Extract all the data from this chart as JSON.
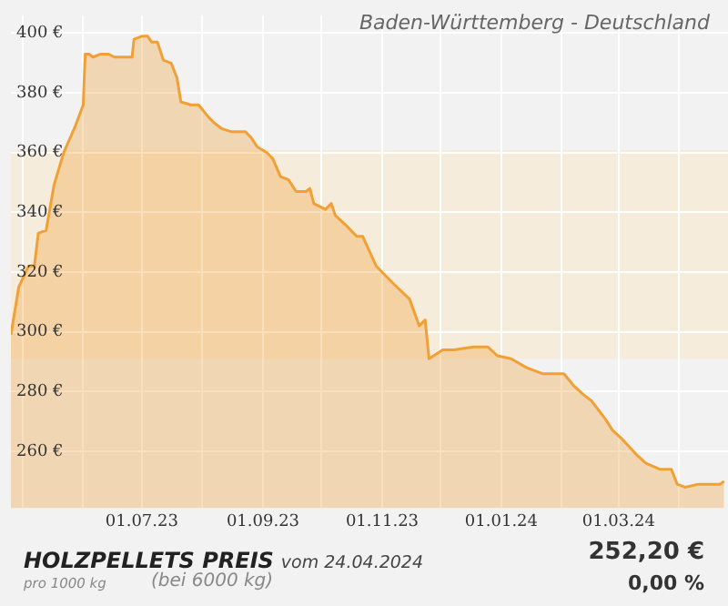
{
  "chart_data": {
    "type": "area",
    "title": "HOLZPELLETS PREIS",
    "subtitle": "vom 24.04.2024",
    "annotations": [
      "Baden-Württemberg - Deutschland",
      "pro 1000 kg",
      "(bei 6000 kg)",
      "252,20 €",
      "0,00 %"
    ],
    "x": [
      "2023-04-25",
      "2023-04-29",
      "2023-05-04",
      "2023-05-07",
      "2023-05-09",
      "2023-05-13",
      "2023-05-17",
      "2023-05-22",
      "2023-05-28",
      "2023-06-01",
      "2023-06-02",
      "2023-06-04",
      "2023-06-06",
      "2023-06-10",
      "2023-06-14",
      "2023-06-17",
      "2023-06-26",
      "2023-06-27",
      "2023-07-01",
      "2023-07-04",
      "2023-07-06",
      "2023-07-09",
      "2023-07-12",
      "2023-07-16",
      "2023-07-19",
      "2023-07-21",
      "2023-07-26",
      "2023-07-30",
      "2023-08-04",
      "2023-08-07",
      "2023-08-11",
      "2023-08-16",
      "2023-08-23",
      "2023-08-26",
      "2023-08-29",
      "2023-09-03",
      "2023-09-06",
      "2023-09-10",
      "2023-09-14",
      "2023-09-18",
      "2023-09-23",
      "2023-09-25",
      "2023-09-27",
      "2023-10-03",
      "2023-10-06",
      "2023-10-08",
      "2023-10-13",
      "2023-10-19",
      "2023-10-22",
      "2023-10-29",
      "2023-11-07",
      "2023-11-15",
      "2023-11-20",
      "2023-11-23",
      "2023-11-25",
      "2023-12-02",
      "2023-12-08",
      "2023-12-18",
      "2023-12-25",
      "2023-12-30",
      "2024-01-06",
      "2024-01-14",
      "2024-01-22",
      "2024-01-26",
      "2024-02-02",
      "2024-02-07",
      "2024-02-12",
      "2024-02-16",
      "2024-02-23",
      "2024-02-27",
      "2024-03-03",
      "2024-03-10",
      "2024-03-15",
      "2024-03-22",
      "2024-03-28",
      "2024-03-31",
      "2024-04-04",
      "2024-04-11",
      "2024-04-18",
      "2024-04-22",
      "2024-04-24"
    ],
    "series": [
      {
        "color": "#f0a035",
        "values": [
          299,
          315,
          322,
          322,
          333,
          334,
          349,
          360,
          369,
          376,
          393,
          393,
          392,
          393,
          393,
          392,
          392,
          398,
          399,
          399,
          397,
          397,
          391,
          390,
          385,
          377,
          376,
          376,
          372,
          370,
          368,
          367,
          367,
          365,
          362,
          360,
          358,
          352,
          351,
          347,
          347,
          348,
          343,
          341,
          343,
          339,
          336,
          332,
          332,
          322,
          316,
          311,
          302,
          304,
          291,
          294,
          294,
          295,
          295,
          292,
          291,
          288,
          286,
          286,
          286,
          282,
          279,
          277,
          271,
          267,
          264,
          259,
          256,
          254,
          254,
          249,
          248,
          249,
          249,
          249,
          250
        ]
      }
    ],
    "xlim": [
      "2023-04-25",
      "2024-04-26"
    ],
    "xticks": [
      {
        "value": "2023-05-01",
        "label": null
      },
      {
        "value": "2023-06-01",
        "label": null
      },
      {
        "value": "2023-07-01",
        "label": "01.07.23"
      },
      {
        "value": "2023-08-01",
        "label": null
      },
      {
        "value": "2023-09-01",
        "label": "01.09.23"
      },
      {
        "value": "2023-10-01",
        "label": null
      },
      {
        "value": "2023-11-01",
        "label": "01.11.23"
      },
      {
        "value": "2023-12-01",
        "label": null
      },
      {
        "value": "2024-01-01",
        "label": "01.01.24"
      },
      {
        "value": "2024-02-01",
        "label": null
      },
      {
        "value": "2024-03-01",
        "label": "01.03.24"
      },
      {
        "value": "2024-04-01",
        "label": null
      }
    ],
    "ylim": [
      241,
      406
    ],
    "yticks": [
      {
        "value": 260,
        "label": "260 €"
      },
      {
        "value": 280,
        "label": "280 €"
      },
      {
        "value": 300,
        "label": "300 €"
      },
      {
        "value": 320,
        "label": "320 €"
      },
      {
        "value": 340,
        "label": "340 €"
      },
      {
        "value": 360,
        "label": "360 €"
      },
      {
        "value": 380,
        "label": "380 €"
      },
      {
        "value": 400,
        "label": "400 €"
      }
    ],
    "bands": [
      {
        "axis": "y",
        "from": 291,
        "to": 361,
        "color": "#f6ecdc"
      }
    ],
    "grid": true,
    "legend": false,
    "marker": "none",
    "line_style": "solid"
  }
}
